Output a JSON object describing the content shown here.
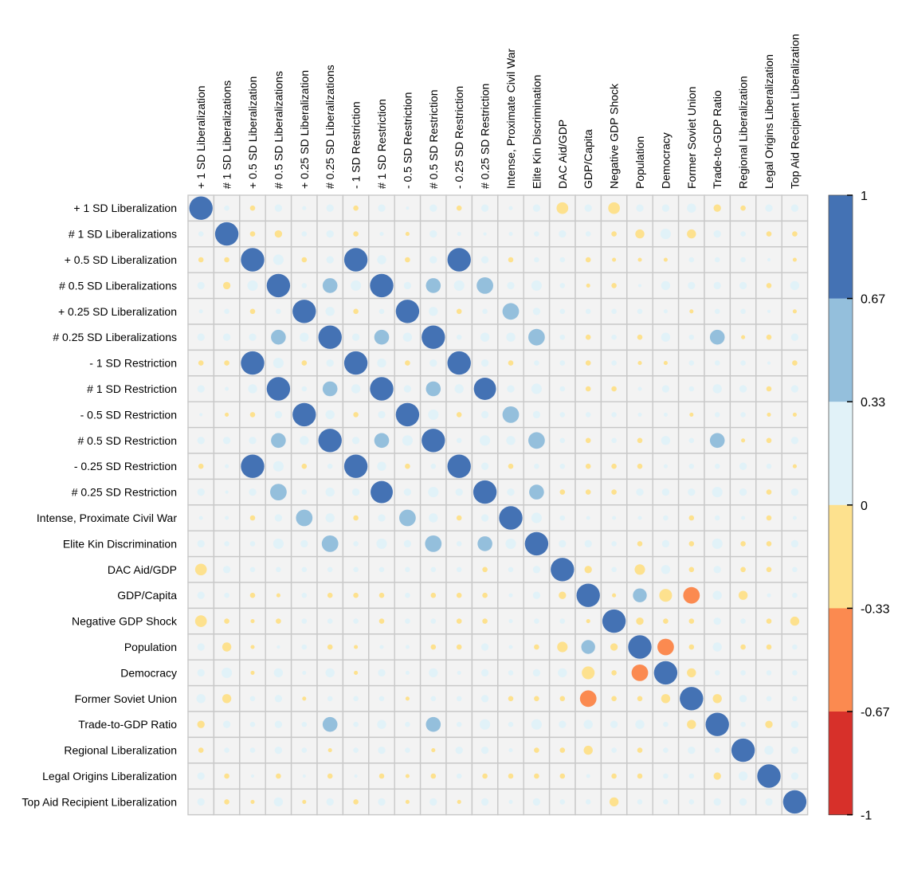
{
  "chart_data": {
    "type": "heatmap",
    "title": "",
    "variables": [
      "+ 1 SD Liberalization",
      "# 1 SD Liberalizations",
      "+ 0.5 SD Liberalization",
      "# 0.5 SD Liberalizations",
      "+ 0.25 SD Liberalization",
      "# 0.25 SD Liberalizations",
      "- 1 SD Restriction",
      "# 1 SD Restriction",
      "- 0.5 SD Restriction",
      "# 0.5 SD Restriction",
      "- 0.25 SD Restriction",
      "# 0.25 SD Restriction",
      "Intense, Proximate Civil War",
      "Elite Kin Discrimination",
      "DAC Aid/GDP",
      "GDP/Capita",
      "Negative GDP Shock",
      "Population",
      "Democracy",
      "Former Soviet Union",
      "Trade-to-GDP Ratio",
      "Regional Liberalization",
      "Legal Origins Liberalization",
      "Top Aid Recipient Liberalization"
    ],
    "color_scale": {
      "range": [
        -1,
        1
      ],
      "tick_labels": [
        "1",
        "0.67",
        "0.33",
        "0",
        "-0.33",
        "-0.67",
        "-1"
      ],
      "bins": [
        {
          "from": 0.67,
          "to": 1.0,
          "color": "#4472b4"
        },
        {
          "from": 0.33,
          "to": 0.67,
          "color": "#94bfdc"
        },
        {
          "from": 0.0,
          "to": 0.33,
          "color": "#e1f2f8"
        },
        {
          "from": -0.33,
          "to": 0.0,
          "color": "#fde18e"
        },
        {
          "from": -0.67,
          "to": -0.33,
          "color": "#fb8a50"
        },
        {
          "from": -1.0,
          "to": -0.67,
          "color": "#d7302a"
        }
      ]
    },
    "cell_background": "#f3f3f3",
    "grid_color": "#c8c8c8",
    "correlations": [
      [
        1,
        0.05,
        -0.05,
        0.1,
        0.03,
        0.1,
        -0.05,
        0.1,
        0.02,
        0.1,
        -0.05,
        0.1,
        0.03,
        0.1,
        -0.25,
        0.1,
        -0.25,
        0.1,
        0.1,
        0.15,
        -0.1,
        -0.05,
        0.1,
        0.1
      ],
      [
        0.05,
        1,
        -0.05,
        -0.1,
        0.05,
        0.1,
        -0.05,
        0.03,
        -0.03,
        0.1,
        0.03,
        0.02,
        0.03,
        0.05,
        0.1,
        0.05,
        -0.05,
        -0.15,
        0.2,
        -0.15,
        0.1,
        0.05,
        -0.05,
        -0.05
      ],
      [
        -0.05,
        -0.05,
        1,
        0.2,
        -0.05,
        0.1,
        1,
        0.15,
        -0.05,
        0.1,
        1,
        0.1,
        -0.05,
        0.05,
        0.05,
        -0.05,
        -0.03,
        -0.03,
        -0.03,
        0.05,
        0.05,
        0.05,
        0.02,
        -0.03
      ],
      [
        0.1,
        -0.1,
        0.2,
        1,
        0.05,
        0.4,
        0.2,
        1,
        0.1,
        0.4,
        0.2,
        0.5,
        0.1,
        0.2,
        0.05,
        -0.03,
        -0.05,
        0.02,
        0.15,
        0.1,
        0.1,
        0.1,
        -0.05,
        0.15
      ],
      [
        0.03,
        0.05,
        -0.05,
        0.05,
        1,
        0.15,
        -0.05,
        0.05,
        1,
        0.15,
        -0.05,
        0.05,
        0.5,
        0.1,
        0.05,
        0.05,
        0.05,
        0.05,
        0.03,
        -0.03,
        0.05,
        0.05,
        0.02,
        -0.03
      ],
      [
        0.1,
        0.1,
        0.1,
        0.4,
        0.15,
        1,
        0.1,
        0.4,
        0.15,
        1,
        0.05,
        0.15,
        0.15,
        0.5,
        0.05,
        -0.05,
        0.05,
        -0.05,
        0.15,
        0.05,
        0.4,
        -0.03,
        -0.05,
        0.1
      ],
      [
        -0.05,
        -0.05,
        1,
        0.2,
        -0.05,
        0.1,
        1,
        0.15,
        -0.05,
        0.1,
        1,
        0.1,
        -0.05,
        0.05,
        0.05,
        -0.05,
        0.05,
        -0.03,
        -0.03,
        0.05,
        0.05,
        0.05,
        0.02,
        -0.05
      ],
      [
        0.1,
        0.03,
        0.15,
        1,
        0.05,
        0.4,
        0.15,
        1,
        0.1,
        0.4,
        0.15,
        0.9,
        0.1,
        0.2,
        0.05,
        -0.05,
        -0.05,
        0.03,
        0.1,
        0.05,
        0.15,
        0.1,
        -0.05,
        0.1
      ],
      [
        0.02,
        -0.03,
        -0.05,
        0.1,
        1,
        0.15,
        -0.05,
        0.1,
        1,
        0.2,
        -0.05,
        0.1,
        0.5,
        0.1,
        0.05,
        0.05,
        0.05,
        0.03,
        0.03,
        -0.03,
        0.05,
        0.05,
        -0.03,
        -0.03
      ],
      [
        0.1,
        0.1,
        0.1,
        0.4,
        0.15,
        1,
        0.1,
        0.4,
        0.2,
        1,
        0.05,
        0.2,
        0.15,
        0.5,
        0.05,
        -0.05,
        0.05,
        -0.05,
        0.15,
        0.05,
        0.4,
        -0.03,
        -0.05,
        0.1
      ],
      [
        -0.05,
        0.03,
        1,
        0.2,
        -0.05,
        0.05,
        1,
        0.15,
        -0.05,
        0.05,
        1,
        0.1,
        -0.05,
        0.05,
        0.05,
        -0.05,
        -0.05,
        -0.05,
        0.03,
        0.05,
        0.05,
        0.1,
        0.05,
        -0.03
      ],
      [
        0.1,
        0.02,
        0.1,
        0.5,
        0.05,
        0.15,
        0.1,
        0.9,
        0.1,
        0.2,
        0.1,
        1,
        0.1,
        0.4,
        -0.05,
        -0.05,
        -0.05,
        0.1,
        0.1,
        0.1,
        0.2,
        0.1,
        -0.05,
        0.1
      ],
      [
        0.03,
        0.03,
        -0.05,
        0.1,
        0.5,
        0.15,
        -0.05,
        0.1,
        0.5,
        0.15,
        -0.05,
        0.1,
        1,
        0.2,
        0.05,
        0.03,
        0.03,
        0.03,
        0.05,
        -0.05,
        0.05,
        0.03,
        -0.05,
        0.03
      ],
      [
        0.1,
        0.05,
        0.05,
        0.2,
        0.1,
        0.5,
        0.05,
        0.2,
        0.1,
        0.5,
        0.05,
        0.4,
        0.2,
        1,
        0.1,
        0.1,
        0.05,
        -0.05,
        0.1,
        -0.05,
        0.2,
        -0.05,
        -0.05,
        0.1
      ],
      [
        -0.25,
        0.1,
        0.05,
        0.05,
        0.05,
        0.05,
        0.05,
        0.05,
        0.05,
        0.05,
        0.05,
        -0.05,
        0.05,
        0.1,
        1,
        -0.1,
        0.05,
        -0.2,
        0.15,
        -0.05,
        0.1,
        -0.05,
        -0.05,
        0.05
      ],
      [
        0.1,
        0.05,
        -0.05,
        -0.03,
        0.05,
        -0.05,
        -0.05,
        -0.05,
        0.05,
        -0.05,
        -0.05,
        -0.05,
        0.03,
        0.1,
        -0.1,
        1,
        -0.03,
        0.35,
        -0.3,
        -0.5,
        0.15,
        -0.15,
        0.03,
        0.05
      ],
      [
        -0.25,
        -0.05,
        -0.03,
        -0.05,
        0.05,
        0.05,
        0.05,
        -0.05,
        0.05,
        0.05,
        -0.05,
        -0.05,
        0.03,
        0.05,
        0.05,
        -0.03,
        1,
        -0.1,
        -0.05,
        -0.05,
        0.1,
        0.05,
        -0.05,
        -0.15
      ],
      [
        0.1,
        -0.15,
        -0.03,
        0.02,
        0.05,
        -0.05,
        -0.03,
        0.03,
        0.03,
        -0.05,
        -0.05,
        0.1,
        0.03,
        -0.05,
        -0.2,
        0.35,
        -0.1,
        1,
        -0.5,
        -0.05,
        0.15,
        -0.05,
        -0.05,
        0.05
      ],
      [
        0.1,
        0.2,
        -0.03,
        0.15,
        0.03,
        0.15,
        -0.03,
        0.1,
        0.03,
        0.15,
        0.03,
        0.1,
        0.05,
        0.1,
        0.15,
        -0.3,
        -0.05,
        -0.5,
        1,
        -0.15,
        0.05,
        0.05,
        0.05,
        0.05
      ],
      [
        0.15,
        -0.15,
        0.05,
        0.1,
        -0.03,
        0.05,
        0.05,
        0.05,
        -0.03,
        0.05,
        0.05,
        0.1,
        -0.05,
        -0.05,
        -0.05,
        -0.5,
        -0.05,
        -0.05,
        -0.15,
        1,
        -0.15,
        0.1,
        0.05,
        0.05
      ],
      [
        -0.1,
        0.1,
        0.05,
        0.1,
        0.05,
        0.4,
        0.05,
        0.15,
        0.05,
        0.4,
        0.05,
        0.2,
        0.05,
        0.2,
        0.1,
        0.15,
        0.1,
        0.15,
        0.05,
        -0.15,
        1,
        0.05,
        -0.1,
        0.1
      ],
      [
        -0.05,
        0.05,
        0.05,
        0.1,
        0.05,
        -0.03,
        0.05,
        0.1,
        0.05,
        -0.03,
        0.1,
        0.1,
        0.03,
        -0.05,
        -0.05,
        -0.15,
        0.05,
        -0.05,
        0.05,
        0.1,
        0.05,
        1,
        0.15,
        0.1
      ],
      [
        0.1,
        -0.05,
        0.02,
        -0.05,
        0.02,
        -0.05,
        0.02,
        -0.05,
        -0.03,
        -0.05,
        0.05,
        -0.05,
        -0.05,
        -0.05,
        -0.05,
        0.03,
        -0.05,
        -0.05,
        0.05,
        0.05,
        -0.1,
        0.15,
        1,
        0.1
      ],
      [
        0.1,
        -0.05,
        -0.03,
        0.15,
        -0.03,
        0.1,
        -0.05,
        0.1,
        -0.03,
        0.1,
        -0.03,
        0.1,
        0.03,
        0.1,
        0.05,
        0.05,
        -0.15,
        0.05,
        0.05,
        0.05,
        0.1,
        0.1,
        0.1,
        1
      ]
    ]
  }
}
